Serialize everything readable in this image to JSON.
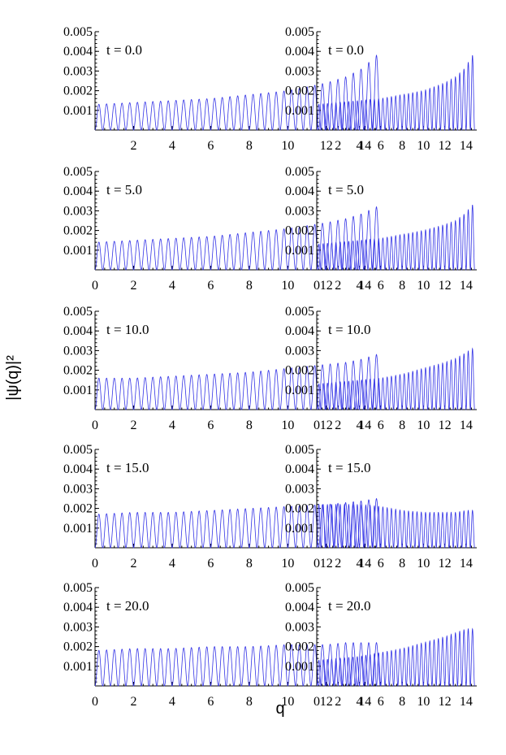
{
  "figure": {
    "ylabel": "|ψ(q)|²",
    "xlabel": "q",
    "line_color": "#3333e6"
  },
  "chart_data": [
    {
      "type": "line",
      "title": "t = 0.0",
      "xlim": [
        0,
        15
      ],
      "ylim": [
        0,
        0.005
      ],
      "yticks": [
        0.001,
        0.002,
        0.003,
        0.004,
        0.005
      ],
      "xticks": [
        2,
        4,
        6,
        8,
        10,
        12,
        14
      ],
      "x_range": [
        0,
        14.8
      ],
      "oscillation_peaks": 37,
      "envelope": {
        "q": [
          0,
          2,
          4,
          6,
          8,
          10,
          12,
          13,
          14,
          14.5
        ],
        "value": [
          0.0013,
          0.0014,
          0.0015,
          0.0016,
          0.0018,
          0.002,
          0.0024,
          0.0027,
          0.0032,
          0.0038
        ]
      }
    },
    {
      "type": "line",
      "title": "t = 0.0",
      "xlim": [
        0,
        15
      ],
      "ylim": [
        0,
        0.005
      ],
      "yticks": [
        0.001,
        0.002,
        0.003,
        0.004,
        0.005
      ],
      "xticks": [
        2,
        4,
        6,
        8,
        10,
        12,
        14
      ],
      "x_range": [
        0,
        14.8
      ],
      "oscillation_peaks": 37,
      "envelope": {
        "q": [
          0,
          2,
          4,
          6,
          8,
          10,
          12,
          13,
          14,
          14.5
        ],
        "value": [
          0.0013,
          0.0014,
          0.0015,
          0.0016,
          0.0018,
          0.002,
          0.0024,
          0.0027,
          0.0032,
          0.0038
        ]
      }
    },
    {
      "type": "line",
      "title": "t = 5.0",
      "xlim": [
        0,
        15
      ],
      "ylim": [
        0,
        0.005
      ],
      "yticks": [
        0.001,
        0.002,
        0.003,
        0.004,
        0.005
      ],
      "xticks": [
        0,
        2,
        4,
        6,
        8,
        10,
        12,
        14
      ],
      "x_range": [
        0,
        14.8
      ],
      "oscillation_peaks": 37,
      "envelope": {
        "q": [
          0,
          2,
          4,
          6,
          8,
          10,
          12,
          13,
          14,
          14.5
        ],
        "value": [
          0.0014,
          0.0015,
          0.0016,
          0.0017,
          0.0019,
          0.0021,
          0.0024,
          0.0026,
          0.0029,
          0.0032
        ]
      }
    },
    {
      "type": "line",
      "title": "t = 5.0",
      "xlim": [
        0,
        15
      ],
      "ylim": [
        0,
        0.005
      ],
      "yticks": [
        0.001,
        0.002,
        0.003,
        0.004,
        0.005
      ],
      "xticks": [
        0,
        2,
        4,
        6,
        8,
        10,
        12,
        14
      ],
      "x_range": [
        0,
        14.8
      ],
      "oscillation_peaks": 37,
      "envelope": {
        "q": [
          0,
          2,
          4,
          6,
          8,
          10,
          12,
          13,
          14,
          14.5
        ],
        "value": [
          0.0013,
          0.0014,
          0.0015,
          0.0016,
          0.0018,
          0.002,
          0.0023,
          0.0025,
          0.0029,
          0.0033
        ]
      }
    },
    {
      "type": "line",
      "title": "t = 10.0",
      "xlim": [
        0,
        15
      ],
      "ylim": [
        0,
        0.005
      ],
      "yticks": [
        0.001,
        0.002,
        0.003,
        0.004,
        0.005
      ],
      "xticks": [
        0,
        2,
        4,
        6,
        8,
        10,
        12,
        14
      ],
      "x_range": [
        0,
        14.8
      ],
      "oscillation_peaks": 37,
      "envelope": {
        "q": [
          0,
          2,
          4,
          6,
          8,
          10,
          12,
          13,
          14,
          14.5
        ],
        "value": [
          0.0016,
          0.0016,
          0.0017,
          0.0018,
          0.0019,
          0.0021,
          0.0023,
          0.0024,
          0.0026,
          0.0028
        ]
      }
    },
    {
      "type": "line",
      "title": "t = 10.0",
      "xlim": [
        0,
        15
      ],
      "ylim": [
        0,
        0.005
      ],
      "yticks": [
        0.001,
        0.002,
        0.003,
        0.004,
        0.005
      ],
      "xticks": [
        0,
        2,
        4,
        6,
        8,
        10,
        12,
        14
      ],
      "x_range": [
        0,
        14.8
      ],
      "oscillation_peaks": 37,
      "envelope": {
        "q": [
          0,
          2,
          4,
          6,
          8,
          10,
          12,
          13,
          14,
          14.5
        ],
        "value": [
          0.0013,
          0.0014,
          0.0015,
          0.0016,
          0.0018,
          0.0021,
          0.0024,
          0.0026,
          0.0029,
          0.0031
        ]
      }
    },
    {
      "type": "line",
      "title": "t = 15.0",
      "xlim": [
        0,
        15
      ],
      "ylim": [
        0,
        0.005
      ],
      "yticks": [
        0.001,
        0.002,
        0.003,
        0.004,
        0.005
      ],
      "xticks": [
        0,
        2,
        4,
        6,
        8,
        10,
        12,
        14
      ],
      "x_range": [
        0,
        14.8
      ],
      "oscillation_peaks": 37,
      "envelope": {
        "q": [
          0,
          2,
          4,
          6,
          8,
          10,
          12,
          13,
          14,
          14.5
        ],
        "value": [
          0.0017,
          0.0018,
          0.0018,
          0.0019,
          0.002,
          0.0021,
          0.0022,
          0.0023,
          0.0024,
          0.0025
        ]
      }
    },
    {
      "type": "line",
      "title": "t = 15.0",
      "xlim": [
        0,
        15
      ],
      "ylim": [
        0,
        0.005
      ],
      "yticks": [
        0.001,
        0.002,
        0.003,
        0.004,
        0.005
      ],
      "xticks": [
        0,
        2,
        4,
        6,
        8,
        10,
        12,
        14
      ],
      "x_range": [
        0,
        14.8
      ],
      "oscillation_peaks": 37,
      "envelope": {
        "q": [
          0,
          2,
          4,
          6,
          8,
          10,
          12,
          13,
          14,
          14.5
        ],
        "value": [
          0.0022,
          0.0022,
          0.0022,
          0.0021,
          0.0019,
          0.0018,
          0.0018,
          0.0018,
          0.0019,
          0.0019
        ]
      }
    },
    {
      "type": "line",
      "title": "t = 20.0",
      "xlim": [
        0,
        15
      ],
      "ylim": [
        0,
        0.005
      ],
      "yticks": [
        0.001,
        0.002,
        0.003,
        0.004,
        0.005
      ],
      "xticks": [
        0,
        2,
        4,
        6,
        8,
        10,
        12,
        14
      ],
      "x_range": [
        0,
        14.8
      ],
      "oscillation_peaks": 37,
      "envelope": {
        "q": [
          0,
          2,
          4,
          6,
          8,
          10,
          12,
          13,
          14,
          14.5
        ],
        "value": [
          0.0018,
          0.0019,
          0.0019,
          0.002,
          0.002,
          0.0021,
          0.0021,
          0.0022,
          0.0022,
          0.0022
        ]
      }
    },
    {
      "type": "line",
      "title": "t = 20.0",
      "xlim": [
        0,
        15
      ],
      "ylim": [
        0,
        0.005
      ],
      "yticks": [
        0.001,
        0.002,
        0.003,
        0.004,
        0.005
      ],
      "xticks": [
        0,
        2,
        4,
        6,
        8,
        10,
        12,
        14
      ],
      "x_range": [
        0,
        14.8
      ],
      "oscillation_peaks": 37,
      "envelope": {
        "q": [
          0,
          2,
          4,
          6,
          8,
          10,
          12,
          13,
          14,
          14.5
        ],
        "value": [
          0.0013,
          0.0014,
          0.0015,
          0.0017,
          0.0019,
          0.0022,
          0.0025,
          0.0027,
          0.0029,
          0.0029
        ]
      }
    }
  ]
}
